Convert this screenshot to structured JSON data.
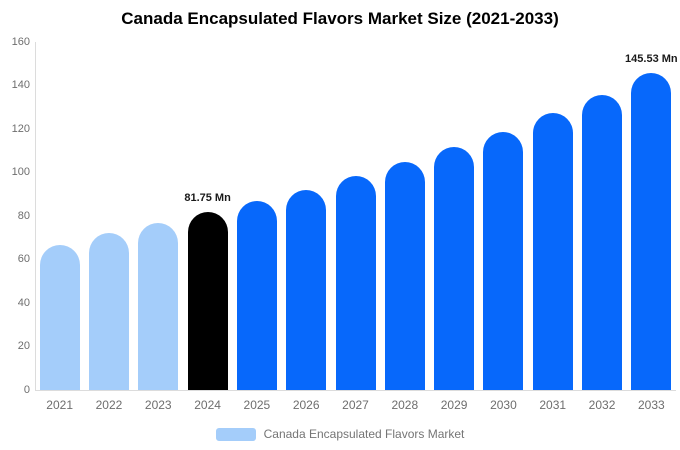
{
  "chart_data": {
    "type": "bar",
    "title": "Canada Encapsulated Flavors Market Size (2021-2033)",
    "series_name": "Canada Encapsulated Flavors Market",
    "categories": [
      "2021",
      "2022",
      "2023",
      "2024",
      "2025",
      "2026",
      "2027",
      "2028",
      "2029",
      "2030",
      "2031",
      "2032",
      "2033"
    ],
    "values": [
      66.5,
      72.0,
      76.8,
      81.75,
      87.0,
      92.0,
      98.3,
      104.9,
      111.7,
      118.7,
      127.2,
      135.8,
      145.53
    ],
    "unit": "Mn",
    "xlabel": "",
    "ylabel": "",
    "ylim": [
      0,
      160
    ],
    "yticks": [
      0,
      20,
      40,
      60,
      80,
      100,
      120,
      140,
      160
    ],
    "grid": false,
    "legend_position": "bottom",
    "annotations": [
      {
        "category": "2024",
        "text": "81.75 Mn"
      },
      {
        "category": "2033",
        "text": "145.53 Mn"
      }
    ],
    "bar_roles": [
      "historical",
      "historical",
      "historical",
      "highlight",
      "forecast",
      "forecast",
      "forecast",
      "forecast",
      "forecast",
      "forecast",
      "forecast",
      "forecast",
      "forecast"
    ],
    "role_colors": {
      "historical": "#A4CDFA",
      "highlight": "#000000",
      "forecast": "#0768FB"
    },
    "axis_line_color": "#DCDCDC",
    "tick_label_color": "#6E6E6E",
    "title_color": "#000000",
    "annotation_color": "#1A1A1A",
    "legend_text_color": "#757575"
  }
}
